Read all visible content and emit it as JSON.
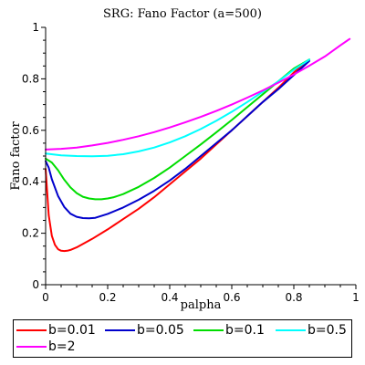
{
  "chart_data": {
    "type": "line",
    "title": "SRG: Fano Factor (a=500)",
    "xlabel": "palpha",
    "ylabel": "Fano factor",
    "xlim": [
      0,
      1
    ],
    "ylim": [
      0,
      1
    ],
    "xticks": [
      "0",
      "0.2",
      "0.4",
      "0.6",
      "0.8",
      "1"
    ],
    "yticks": [
      "0",
      "0.2",
      "0.4",
      "0.6",
      "0.8",
      "1"
    ],
    "grid": false,
    "legend_position": "bottom",
    "series": [
      {
        "name": "b=0.01",
        "color": "#ff0000",
        "x": [
          0.0,
          0.005,
          0.01,
          0.02,
          0.03,
          0.04,
          0.05,
          0.06,
          0.07,
          0.08,
          0.1,
          0.12,
          0.15,
          0.2,
          0.25,
          0.3,
          0.35,
          0.4,
          0.45,
          0.5,
          0.55,
          0.6,
          0.65,
          0.7,
          0.75,
          0.8,
          0.85
        ],
        "y": [
          0.45,
          0.36,
          0.27,
          0.19,
          0.155,
          0.138,
          0.132,
          0.131,
          0.132,
          0.135,
          0.145,
          0.158,
          0.178,
          0.215,
          0.255,
          0.295,
          0.34,
          0.39,
          0.44,
          0.49,
          0.545,
          0.6,
          0.655,
          0.71,
          0.765,
          0.825,
          0.875
        ]
      },
      {
        "name": "b=0.05",
        "color": "#0000cc",
        "x": [
          0.0,
          0.01,
          0.02,
          0.04,
          0.06,
          0.08,
          0.1,
          0.12,
          0.14,
          0.16,
          0.2,
          0.25,
          0.3,
          0.35,
          0.4,
          0.45,
          0.5,
          0.55,
          0.6,
          0.65,
          0.7,
          0.75,
          0.8,
          0.85
        ],
        "y": [
          0.48,
          0.455,
          0.41,
          0.345,
          0.302,
          0.276,
          0.264,
          0.259,
          0.258,
          0.26,
          0.275,
          0.3,
          0.33,
          0.365,
          0.405,
          0.45,
          0.5,
          0.55,
          0.6,
          0.655,
          0.71,
          0.76,
          0.815,
          0.87
        ]
      },
      {
        "name": "b=0.1",
        "color": "#00dd00",
        "x": [
          0.0,
          0.02,
          0.04,
          0.06,
          0.08,
          0.1,
          0.12,
          0.14,
          0.16,
          0.18,
          0.2,
          0.22,
          0.25,
          0.3,
          0.35,
          0.4,
          0.45,
          0.5,
          0.55,
          0.6,
          0.65,
          0.7,
          0.75,
          0.8,
          0.85
        ],
        "y": [
          0.49,
          0.475,
          0.445,
          0.408,
          0.378,
          0.356,
          0.342,
          0.335,
          0.332,
          0.332,
          0.335,
          0.34,
          0.352,
          0.38,
          0.415,
          0.455,
          0.5,
          0.545,
          0.592,
          0.64,
          0.69,
          0.74,
          0.79,
          0.84,
          0.875
        ]
      },
      {
        "name": "b=0.5",
        "color": "#00ffff",
        "x": [
          0.0,
          0.05,
          0.1,
          0.15,
          0.2,
          0.25,
          0.3,
          0.35,
          0.4,
          0.45,
          0.5,
          0.55,
          0.6,
          0.65,
          0.7,
          0.75,
          0.8,
          0.85
        ],
        "y": [
          0.51,
          0.503,
          0.5,
          0.499,
          0.501,
          0.507,
          0.518,
          0.533,
          0.553,
          0.577,
          0.605,
          0.637,
          0.672,
          0.71,
          0.75,
          0.79,
          0.835,
          0.875
        ]
      },
      {
        "name": "b=2",
        "color": "#ff00ff",
        "x": [
          0.0,
          0.05,
          0.1,
          0.15,
          0.2,
          0.25,
          0.3,
          0.35,
          0.4,
          0.45,
          0.5,
          0.55,
          0.6,
          0.65,
          0.7,
          0.75,
          0.8,
          0.85,
          0.9,
          0.95,
          0.98
        ],
        "y": [
          0.525,
          0.528,
          0.533,
          0.541,
          0.551,
          0.563,
          0.577,
          0.593,
          0.611,
          0.631,
          0.652,
          0.675,
          0.7,
          0.727,
          0.755,
          0.785,
          0.817,
          0.851,
          0.887,
          0.93,
          0.955
        ]
      }
    ]
  }
}
